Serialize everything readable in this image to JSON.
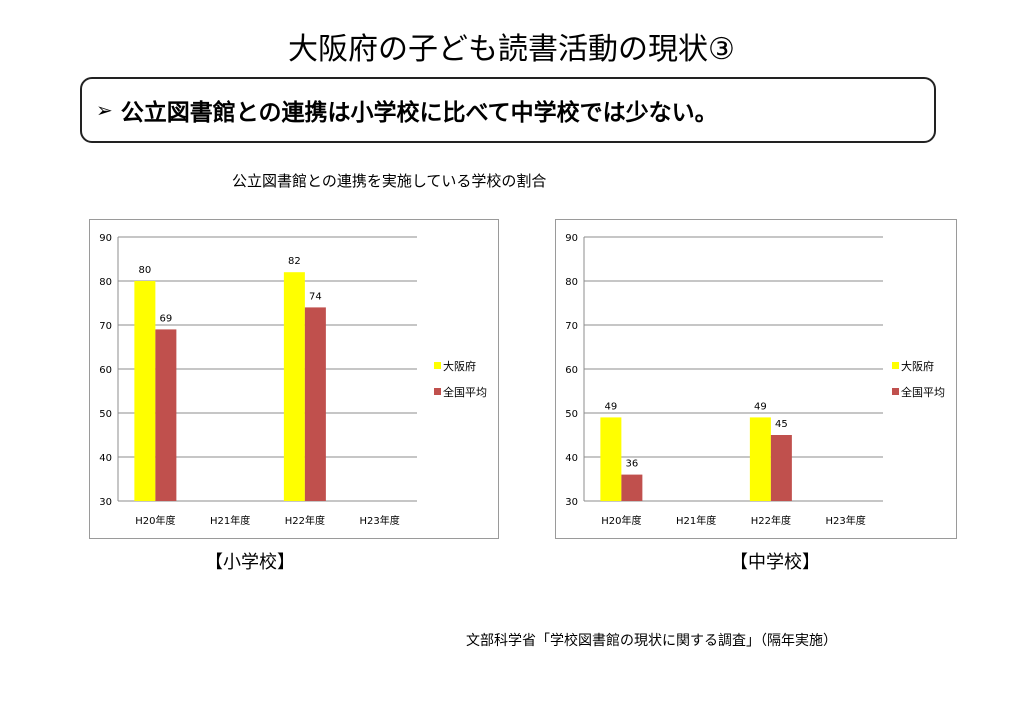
{
  "page": {
    "title": "大阪府の子ども読書活動の現状③",
    "callout_arrow": "➢",
    "callout": "公立図書館との連携は小学校に比べて中学校では少ない。",
    "subtitle": "公立図書館との連携を実施している学校の割合",
    "source": "文部科学省「学校図書館の現状に関する調査」（隔年実施）"
  },
  "chart_data": [
    {
      "type": "bar",
      "caption": "【小学校】",
      "categories": [
        "H20年度",
        "H21年度",
        "H22年度",
        "H23年度"
      ],
      "series": [
        {
          "name": "大阪府",
          "color": "#FFFF00",
          "values": [
            80,
            null,
            82,
            null
          ]
        },
        {
          "name": "全国平均",
          "color": "#C0504D",
          "values": [
            69,
            null,
            74,
            null
          ]
        }
      ],
      "ylim": [
        30,
        90
      ],
      "yticks": [
        30,
        40,
        50,
        60,
        70,
        80,
        90
      ],
      "grid": true,
      "legend": "right"
    },
    {
      "type": "bar",
      "caption": "【中学校】",
      "categories": [
        "H20年度",
        "H21年度",
        "H22年度",
        "H23年度"
      ],
      "series": [
        {
          "name": "大阪府",
          "color": "#FFFF00",
          "values": [
            49,
            null,
            49,
            null
          ]
        },
        {
          "name": "全国平均",
          "color": "#C0504D",
          "values": [
            36,
            null,
            45,
            null
          ]
        }
      ],
      "ylim": [
        30,
        90
      ],
      "yticks": [
        30,
        40,
        50,
        60,
        70,
        80,
        90
      ],
      "grid": true,
      "legend": "right"
    }
  ]
}
